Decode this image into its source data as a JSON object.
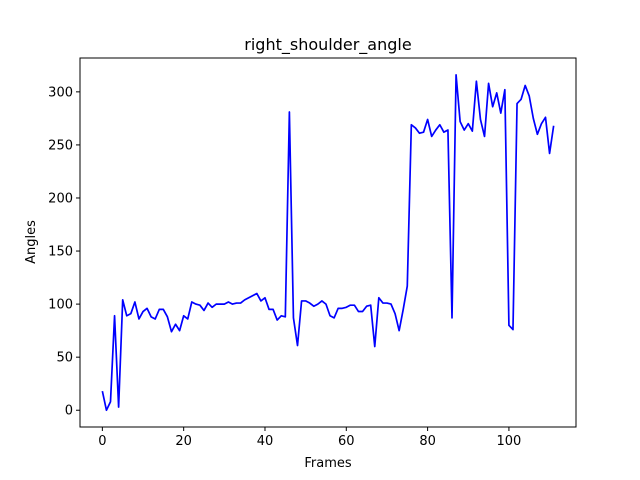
{
  "chart_data": {
    "type": "line",
    "title": "right_shoulder_angle",
    "xlabel": "Frames",
    "ylabel": "Angles",
    "xlim": [
      -5.5,
      116.5
    ],
    "ylim": [
      -15.8,
      331.9
    ],
    "xticks": [
      0,
      20,
      40,
      60,
      80,
      100
    ],
    "yticks": [
      0,
      50,
      100,
      150,
      200,
      250,
      300
    ],
    "grid": false,
    "legend": "none",
    "line_color": "#0000ff",
    "series": [
      {
        "x": [
          0,
          1,
          2,
          3,
          4,
          5,
          6,
          7,
          8,
          9,
          10,
          11,
          12,
          13,
          14,
          15,
          16,
          17,
          18,
          19,
          20,
          21,
          22,
          23,
          24,
          25,
          26,
          27,
          28,
          29,
          30,
          31,
          32,
          33,
          34,
          35,
          36,
          37,
          38,
          39,
          40,
          41,
          42,
          43,
          44,
          45,
          46,
          47,
          48,
          49,
          50,
          51,
          52,
          53,
          54,
          55,
          56,
          57,
          58,
          59,
          60,
          61,
          62,
          63,
          64,
          65,
          66,
          67,
          68,
          69,
          70,
          71,
          72,
          73,
          74,
          75,
          76,
          77,
          78,
          79,
          80,
          81,
          82,
          83,
          84,
          85,
          86,
          87,
          88,
          89,
          90,
          91,
          92,
          93,
          94,
          95,
          96,
          97,
          98,
          99,
          100,
          101,
          102,
          103,
          104,
          105,
          106,
          107,
          108,
          109,
          110,
          111
        ],
        "values": [
          18,
          0,
          8,
          89,
          3,
          104,
          89,
          91,
          102,
          86,
          93,
          96,
          88,
          86,
          95,
          95,
          88,
          74,
          81,
          75,
          89,
          86,
          102,
          100,
          99,
          94,
          101,
          97,
          100,
          100,
          100,
          102,
          100,
          101,
          101,
          104,
          106,
          108,
          110,
          103,
          106,
          95,
          95,
          85,
          89,
          88,
          281,
          87,
          61,
          103,
          103,
          101,
          98,
          100,
          103,
          100,
          89,
          87,
          96,
          96,
          97,
          99,
          99,
          93,
          93,
          98,
          99,
          60,
          106,
          101,
          101,
          100,
          91,
          75,
          95,
          117,
          269,
          266,
          261,
          262,
          274,
          258,
          264,
          269,
          262,
          264,
          87,
          316,
          272,
          264,
          270,
          263,
          310,
          274,
          258,
          308,
          286,
          299,
          280,
          302,
          80,
          76,
          289,
          293,
          306,
          296,
          275,
          260,
          270,
          276,
          242,
          268
        ]
      }
    ]
  }
}
